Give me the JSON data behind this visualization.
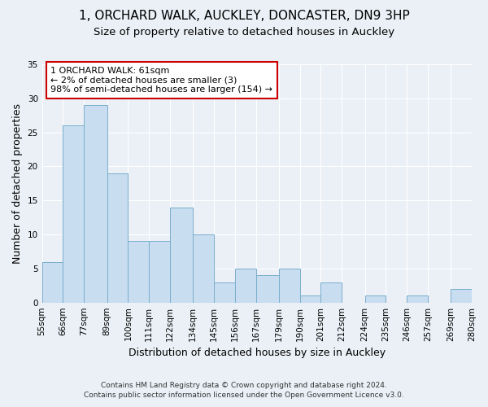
{
  "title": "1, ORCHARD WALK, AUCKLEY, DONCASTER, DN9 3HP",
  "subtitle": "Size of property relative to detached houses in Auckley",
  "xlabel": "Distribution of detached houses by size in Auckley",
  "ylabel": "Number of detached properties",
  "bar_color": "#c8ddf0",
  "bar_edge_color": "#7aaecc",
  "bin_labels": [
    "55sqm",
    "66sqm",
    "77sqm",
    "89sqm",
    "100sqm",
    "111sqm",
    "122sqm",
    "134sqm",
    "145sqm",
    "156sqm",
    "167sqm",
    "179sqm",
    "190sqm",
    "201sqm",
    "212sqm",
    "224sqm",
    "235sqm",
    "246sqm",
    "257sqm",
    "269sqm",
    "280sqm"
  ],
  "bin_edges": [
    55,
    66,
    77,
    89,
    100,
    111,
    122,
    134,
    145,
    156,
    167,
    179,
    190,
    201,
    212,
    224,
    235,
    246,
    257,
    269,
    280
  ],
  "counts": [
    6,
    26,
    29,
    19,
    9,
    9,
    14,
    10,
    3,
    5,
    4,
    5,
    1,
    3,
    0,
    1,
    0,
    1,
    0,
    2
  ],
  "ylim": [
    0,
    35
  ],
  "yticks": [
    0,
    5,
    10,
    15,
    20,
    25,
    30,
    35
  ],
  "annotation_text": "1 ORCHARD WALK: 61sqm\n← 2% of detached houses are smaller (3)\n98% of semi-detached houses are larger (154) →",
  "annotation_box_color": "#ffffff",
  "annotation_box_edge": "#cc0000",
  "footer_line1": "Contains HM Land Registry data © Crown copyright and database right 2024.",
  "footer_line2": "Contains public sector information licensed under the Open Government Licence v3.0.",
  "title_fontsize": 11,
  "subtitle_fontsize": 9.5,
  "axis_label_fontsize": 9,
  "tick_fontsize": 7.5,
  "annotation_fontsize": 8,
  "footer_fontsize": 6.5,
  "background_color": "#eaf0f6",
  "plot_bg_color": "#eaf0f6",
  "grid_color": "#ffffff"
}
